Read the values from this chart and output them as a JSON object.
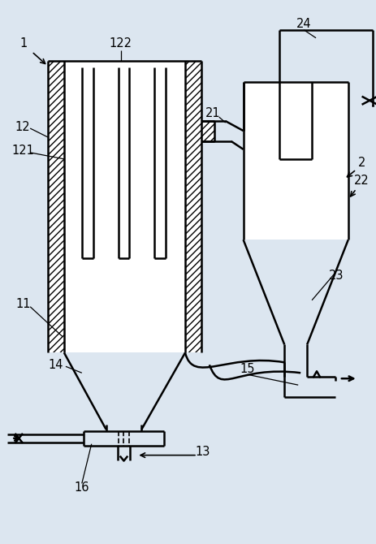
{
  "bg_color": "#dce6f0",
  "line_color": "#000000",
  "lw": 1.8,
  "fig_w": 4.64,
  "fig_h": 6.7
}
